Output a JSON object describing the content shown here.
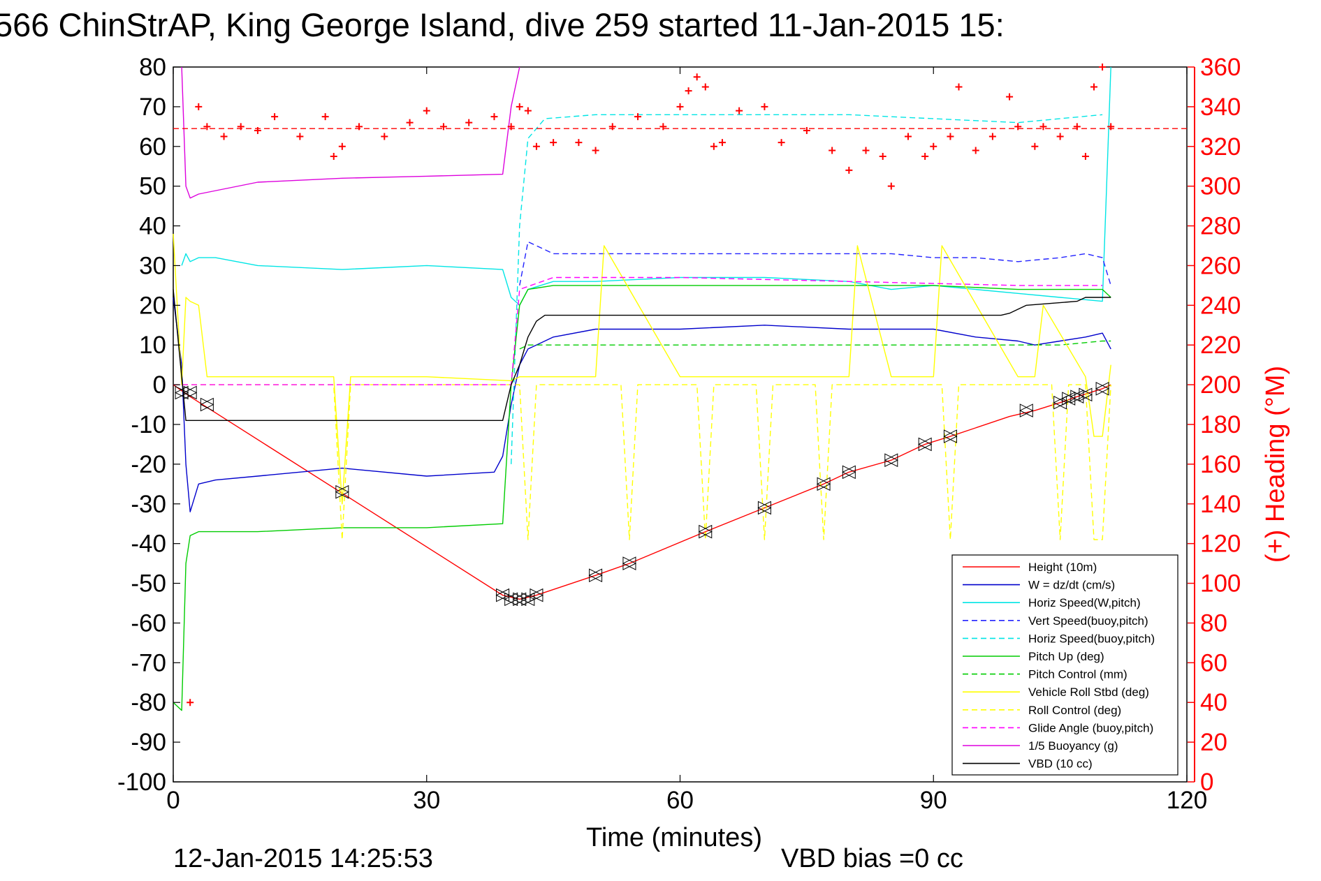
{
  "chart_data": {
    "type": "line",
    "title": "566 ChinStrAP, King George Island, dive 259 started 11-Jan-2015 15:",
    "xlabel": "Time (minutes)",
    "ylabel_right": "(+) Heading (°M)",
    "xlim": [
      0,
      120
    ],
    "ylim": [
      -100,
      80
    ],
    "ylim_right": [
      0,
      360
    ],
    "xticks": [
      "0",
      "30",
      "60",
      "90",
      "120"
    ],
    "yticks": [
      "80",
      "70",
      "60",
      "50",
      "40",
      "30",
      "20",
      "10",
      "0",
      "-10",
      "-20",
      "-30",
      "-40",
      "-50",
      "-60",
      "-70",
      "-80",
      "-90",
      "-100"
    ],
    "yticks_right": [
      "360",
      "340",
      "320",
      "300",
      "280",
      "260",
      "240",
      "220",
      "200",
      "180",
      "160",
      "140",
      "120",
      "100",
      "80",
      "60",
      "40",
      "20",
      "0"
    ],
    "footer_date": "12-Jan-2015 14:25:53",
    "footer_bias": "VBD bias =0 cc",
    "grid": false,
    "legend_position": "bottom-right",
    "colors": {
      "height": "#ff0000",
      "w": "#0000cc",
      "horiz_speed": "#00e5e5",
      "vert_speed_buoy": "#2222ff",
      "horiz_speed_buoy": "#00e5e5",
      "pitch_up": "#00cc00",
      "pitch_control": "#00cc00",
      "roll": "#ffff00",
      "roll_control": "#ffff00",
      "glide_angle": "#ff00ff",
      "buoyancy": "#dd00dd",
      "vbd": "#000000",
      "heading": "#ff0000",
      "right_axis": "#ff0000"
    },
    "series": [
      {
        "name": "Height (10m)",
        "style": "solid",
        "color": "#ff0000",
        "x": [
          0,
          2,
          39,
          41,
          43,
          50,
          54,
          63,
          70,
          77,
          80,
          85,
          89,
          92,
          99,
          102,
          105,
          107,
          110,
          111
        ],
        "y": [
          0,
          -3,
          -53,
          -54,
          -53,
          -48,
          -45,
          -37,
          -31,
          -25,
          -22,
          -19,
          -15,
          -13,
          -8,
          -6.5,
          -4.5,
          -3,
          -1,
          0
        ]
      },
      {
        "name": "W = dz/dt (cm/s)",
        "style": "solid",
        "color": "#0000cc",
        "x": [
          0,
          1,
          1.5,
          2,
          3,
          5,
          10,
          20,
          30,
          38,
          39,
          40,
          41,
          42,
          45,
          50,
          60,
          70,
          80,
          90,
          95,
          100,
          102,
          105,
          108,
          110,
          111
        ],
        "y": [
          22,
          5,
          -20,
          -32,
          -25,
          -24,
          -23,
          -21,
          -23,
          -22,
          -18,
          -5,
          5,
          9,
          12,
          14,
          14,
          15,
          14,
          14,
          12,
          11,
          10,
          11,
          12,
          13,
          9
        ]
      },
      {
        "name": "Horiz Speed(W,pitch)",
        "style": "solid",
        "color": "#00e5e5",
        "x": [
          1,
          1.5,
          2,
          3,
          5,
          10,
          20,
          30,
          39,
          40,
          41,
          42,
          45,
          50,
          60,
          70,
          80,
          85,
          90,
          100,
          105,
          110,
          110.5,
          111
        ],
        "y": [
          30,
          33,
          31,
          32,
          32,
          30,
          29,
          30,
          29,
          22,
          20,
          24,
          26,
          26,
          27,
          27,
          26,
          24,
          25,
          23,
          22,
          21,
          50,
          80
        ]
      },
      {
        "name": "Vert Speed(buoy,pitch)",
        "style": "dashed",
        "color": "#2222ff",
        "x": [
          41,
          42,
          45,
          50,
          60,
          70,
          80,
          85,
          90,
          95,
          100,
          105,
          108,
          110,
          111
        ],
        "y": [
          25,
          36,
          33,
          33,
          33,
          33,
          33,
          33,
          32,
          32,
          31,
          32,
          33,
          32,
          25
        ]
      },
      {
        "name": "Horiz Speed(buoy,pitch)",
        "style": "dashed",
        "color": "#00e5e5",
        "x": [
          40,
          41,
          42,
          44,
          50,
          60,
          70,
          80,
          90,
          100,
          110
        ],
        "y": [
          -20,
          40,
          62,
          67,
          68,
          68,
          68,
          68,
          67,
          66,
          68
        ]
      },
      {
        "name": "Pitch Up (deg)",
        "style": "solid",
        "color": "#00cc00",
        "x": [
          0,
          1,
          1.5,
          2,
          3,
          5,
          10,
          20,
          30,
          39,
          40,
          41,
          42,
          45,
          50,
          60,
          70,
          80,
          90,
          100,
          105,
          110,
          111
        ],
        "y": [
          -80,
          -82,
          -45,
          -38,
          -37,
          -37,
          -37,
          -36,
          -36,
          -35,
          0,
          20,
          24,
          25,
          25,
          25,
          25,
          25,
          25,
          24,
          24,
          24,
          22
        ]
      },
      {
        "name": "Pitch Control (mm)",
        "style": "dashed",
        "color": "#00cc00",
        "x": [
          41,
          42,
          50,
          60,
          70,
          80,
          90,
          100,
          105,
          110,
          111
        ],
        "y": [
          9,
          10,
          10,
          10,
          10,
          10,
          10,
          10,
          10,
          11,
          11
        ]
      },
      {
        "name": "Vehicle Roll Stbd (deg)",
        "style": "solid",
        "color": "#ffff00",
        "x": [
          0,
          1,
          1.5,
          2,
          3,
          4,
          5,
          10,
          19,
          20,
          21,
          30,
          40,
          41,
          50,
          51,
          60,
          70,
          80,
          81,
          85,
          86,
          90,
          91,
          100,
          102,
          103,
          108,
          109,
          110,
          111
        ],
        "y": [
          38,
          0,
          22,
          21,
          20,
          2,
          2,
          2,
          2,
          -30,
          2,
          2,
          1,
          2,
          2,
          35,
          2,
          2,
          2,
          35,
          2,
          2,
          2,
          35,
          2,
          2,
          20,
          2,
          -13,
          -13,
          5
        ]
      },
      {
        "name": "Roll Control (deg)",
        "style": "dashed",
        "color": "#ffff00",
        "x": [
          0,
          19,
          20,
          21,
          41,
          42,
          43,
          53,
          54,
          55,
          62,
          63,
          64,
          69,
          70,
          71,
          76,
          77,
          78,
          91,
          92,
          93,
          104,
          105,
          106,
          108,
          109,
          110,
          111
        ],
        "y": [
          0,
          0,
          -39,
          0,
          0,
          -39,
          0,
          0,
          -39,
          0,
          0,
          -39,
          0,
          0,
          -39,
          0,
          0,
          -39,
          0,
          0,
          -39,
          0,
          0,
          -39,
          0,
          0,
          -39,
          -39,
          0
        ]
      },
      {
        "name": "Glide Angle (buoy,pitch)",
        "style": "dashed",
        "color": "#ff00ff",
        "x": [
          0,
          40,
          41,
          45,
          60,
          80,
          100,
          110
        ],
        "y": [
          0,
          0,
          24,
          27,
          27,
          26,
          25,
          25
        ]
      },
      {
        "name": "1/5 Buoyancy (g)",
        "style": "solid",
        "color": "#dd00dd",
        "x": [
          1,
          1.5,
          2,
          3,
          10,
          20,
          30,
          39,
          40,
          41
        ],
        "y": [
          80,
          50,
          47,
          48,
          51,
          52,
          52.5,
          53,
          70,
          80
        ]
      },
      {
        "name": "VBD (10 cc)",
        "style": "solid",
        "color": "#000000",
        "x": [
          0,
          1.5,
          2,
          39,
          40,
          41,
          42,
          43,
          44,
          98,
          99,
          100,
          101,
          107,
          108,
          111
        ],
        "y": [
          24,
          -9,
          -9,
          -9,
          0,
          5,
          12,
          16,
          17.5,
          17.5,
          18,
          19,
          20,
          21,
          22,
          22
        ]
      }
    ],
    "heading": {
      "name": "(+) Heading (°M)",
      "mean": 329,
      "x": [
        2,
        3,
        4,
        6,
        8,
        10,
        12,
        15,
        18,
        19,
        20,
        22,
        25,
        28,
        30,
        32,
        35,
        38,
        40,
        41,
        42,
        43,
        45,
        48,
        50,
        52,
        55,
        58,
        60,
        61,
        62,
        63,
        64,
        65,
        67,
        70,
        72,
        75,
        78,
        80,
        82,
        84,
        85,
        87,
        89,
        90,
        92,
        93,
        95,
        97,
        99,
        100,
        102,
        103,
        105,
        107,
        108,
        109,
        110,
        111
      ],
      "y": [
        40,
        340,
        330,
        325,
        330,
        328,
        335,
        325,
        335,
        315,
        320,
        330,
        325,
        332,
        338,
        330,
        332,
        335,
        330,
        340,
        338,
        320,
        322,
        322,
        318,
        330,
        335,
        330,
        340,
        348,
        355,
        350,
        320,
        322,
        338,
        340,
        322,
        328,
        318,
        308,
        318,
        315,
        300,
        325,
        315,
        320,
        325,
        350,
        318,
        325,
        345,
        330,
        320,
        330,
        325,
        330,
        315,
        350,
        360,
        330
      ]
    },
    "markers": {
      "x": [
        1,
        2,
        4,
        20,
        39,
        40,
        41,
        42,
        43,
        50,
        54,
        63,
        70,
        77,
        80,
        85,
        89,
        92,
        101,
        105,
        106,
        107,
        108,
        110
      ],
      "y": [
        -2,
        -2,
        -5,
        -27,
        -53,
        -54,
        -54,
        -54,
        -53,
        -48,
        -45,
        -37,
        -31,
        -25,
        -22,
        -19,
        -15,
        -13,
        -6.5,
        -4.5,
        -3.5,
        -3,
        -2.5,
        -1
      ]
    },
    "legend": [
      {
        "label": "Height (10m)",
        "color": "#ff0000",
        "style": "solid"
      },
      {
        "label": "W = dz/dt (cm/s)",
        "color": "#0000cc",
        "style": "solid"
      },
      {
        "label": "Horiz Speed(W,pitch)",
        "color": "#00e5e5",
        "style": "solid"
      },
      {
        "label": "Vert Speed(buoy,pitch)",
        "color": "#2222ff",
        "style": "dashed"
      },
      {
        "label": "Horiz Speed(buoy,pitch)",
        "color": "#00e5e5",
        "style": "dashed"
      },
      {
        "label": "Pitch Up (deg)",
        "color": "#00cc00",
        "style": "solid"
      },
      {
        "label": "Pitch Control (mm)",
        "color": "#00cc00",
        "style": "dashed"
      },
      {
        "label": "Vehicle Roll Stbd (deg)",
        "color": "#ffff00",
        "style": "solid"
      },
      {
        "label": "Roll Control (deg)",
        "color": "#ffff00",
        "style": "dashed"
      },
      {
        "label": "Glide Angle (buoy,pitch)",
        "color": "#ff00ff",
        "style": "dashed"
      },
      {
        "label": "1/5 Buoyancy (g)",
        "color": "#dd00dd",
        "style": "solid"
      },
      {
        "label": "VBD (10 cc)",
        "color": "#000000",
        "style": "solid"
      }
    ]
  }
}
